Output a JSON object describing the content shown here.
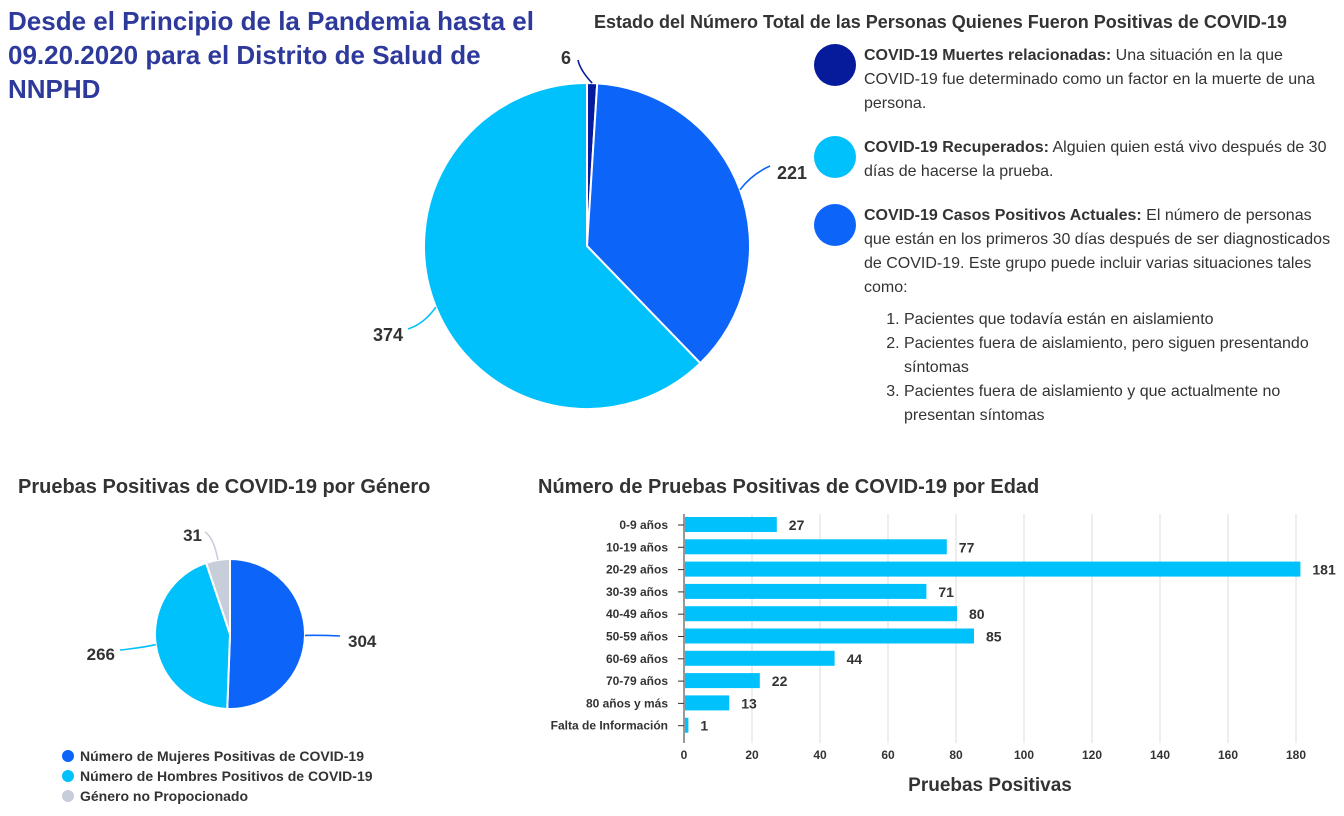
{
  "main_title": "Desde el Principio de la Pandemia hasta el 09.20.2020 para el Distrito de Salud de NNPHD",
  "chart_data": [
    {
      "type": "pie",
      "title": "Estado del Número Total de las Personas Quienes Fueron Positivas de COVID-19",
      "slices": [
        {
          "label": "COVID-19 Muertes relacionadas",
          "value": 6,
          "color": "#061a9c"
        },
        {
          "label": "COVID-19 Casos Positivos Actuales",
          "value": 221,
          "color": "#0c64f9"
        },
        {
          "label": "COVID-19 Recuperados",
          "value": 374,
          "color": "#00c1fc"
        }
      ],
      "legend": [
        {
          "label": "COVID-19 Muertes relacionadas:",
          "text": "Una situación en la que COVID-19 fue determinado como un factor en la muerte de una persona.",
          "color": "#061a9c"
        },
        {
          "label": "COVID-19 Recuperados:",
          "text": "Alguien quien está vivo después de 30 días de hacerse la prueba.",
          "color": "#00c1fc"
        },
        {
          "label": "COVID-19 Casos Positivos Actuales:",
          "text": "El número de personas que están en los primeros 30 días después de ser diagnosticados de COVID-19. Este grupo puede incluir varias situaciones tales como:",
          "color": "#0c64f9"
        }
      ],
      "situations": [
        "Pacientes que todavía están en aislamiento",
        "Pacientes fuera de aislamiento, pero siguen presentando síntomas",
        "Pacientes fuera de aislamiento y que actualmente no presentan síntomas"
      ]
    },
    {
      "type": "pie",
      "title": "Pruebas Positivas de COVID-19 por Género",
      "slices": [
        {
          "label": "Número de Mujeres Positivas de COVID-19",
          "value": 304,
          "color": "#0c64f9"
        },
        {
          "label": "Número de Hombres Positivos de COVID-19",
          "value": 266,
          "color": "#00c1fc"
        },
        {
          "label": "Género no Propocionado",
          "value": 31,
          "color": "#c8cdda"
        }
      ],
      "legend_position": "bottom"
    },
    {
      "type": "bar",
      "orientation": "horizontal",
      "title": "Número de Pruebas Positivas de COVID-19 por Edad",
      "categories": [
        "0-9 años",
        "10-19 años",
        "20-29 años",
        "30-39 años",
        "40-49 años",
        "50-59 años",
        "60-69 años",
        "70-79 años",
        "80 años y más",
        "Falta de Información"
      ],
      "values": [
        27,
        77,
        181,
        71,
        80,
        85,
        44,
        22,
        13,
        1
      ],
      "xlabel": "Pruebas Positivas",
      "ylabel": "",
      "xlim": [
        0,
        180
      ],
      "xticks": [
        0,
        20,
        40,
        60,
        80,
        100,
        120,
        140,
        160,
        180
      ],
      "grid": true,
      "color": "#00c1fc"
    }
  ]
}
